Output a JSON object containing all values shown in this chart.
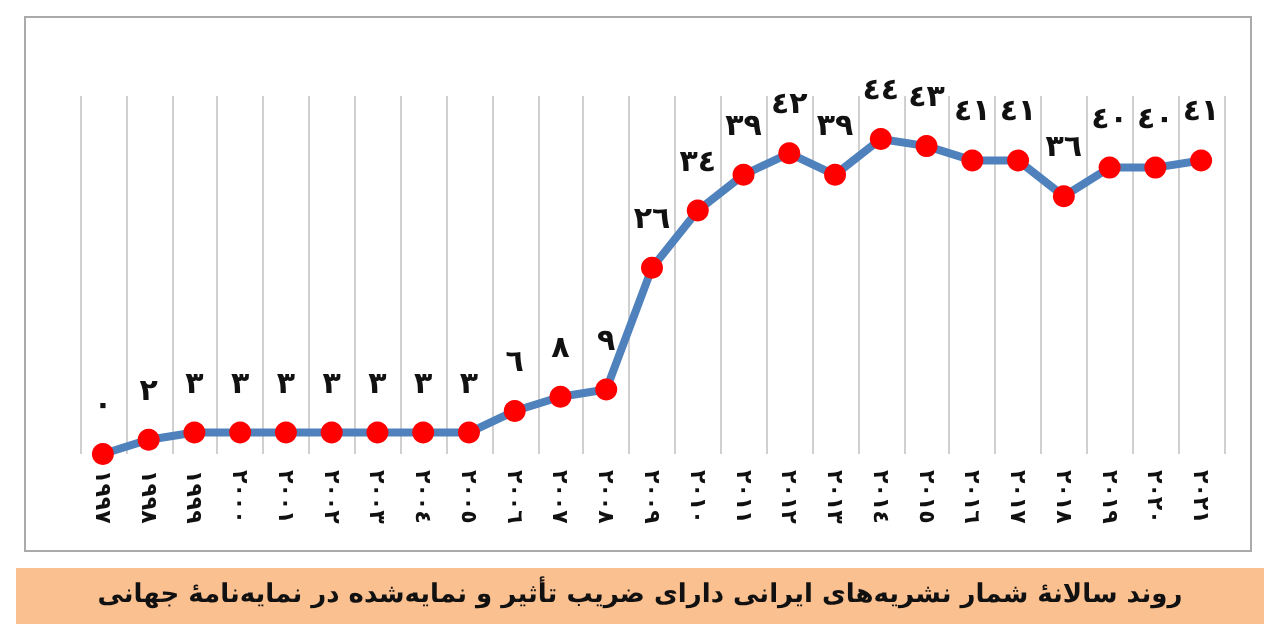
{
  "chart_data": {
    "type": "line",
    "title": "روند سالانهٔ شمار نشریه‌های ایرانی دارای ضریب تأثیر و نمایه‌شده در نمایه‌نامهٔ جهانی",
    "categories": [
      "١٩٩٧",
      "١٩٩٨",
      "١٩٩٩",
      "٢٠٠٠",
      "٢٠٠١",
      "٢٠٠٢",
      "٢٠٠٣",
      "٢٠٠٤",
      "٢٠٠٥",
      "٢٠٠٦",
      "٢٠٠٧",
      "٢٠٠٨",
      "٢٠٠٩",
      "٢٠١٠",
      "٢٠١١",
      "٢٠١٢",
      "٢٠١٣",
      "٢٠١٤",
      "٢٠١٥",
      "٢٠١٦",
      "٢٠١٧",
      "٢٠١٨",
      "٢٠١٩",
      "٢٠٢٠",
      "٢٠٢١"
    ],
    "values": [
      0,
      2,
      3,
      3,
      3,
      3,
      3,
      3,
      3,
      6,
      8,
      9,
      26,
      34,
      39,
      42,
      39,
      44,
      43,
      41,
      41,
      36,
      40,
      40,
      41
    ],
    "value_labels": [
      "٠",
      "٢",
      "٣",
      "٣",
      "٣",
      "٣",
      "٣",
      "٣",
      "٣",
      "٦",
      "٨",
      "٩",
      "٢٦",
      "٣٤",
      "٣٩",
      "٤٢",
      "٣٩",
      "٤٤",
      "٤٣",
      "٤١",
      "٤١",
      "٣٦",
      "٤٠",
      "٤٠",
      "٤١"
    ],
    "color": "#4f81bd",
    "marker": "circle",
    "grid": "x",
    "tick_labels": "x"
  }
}
